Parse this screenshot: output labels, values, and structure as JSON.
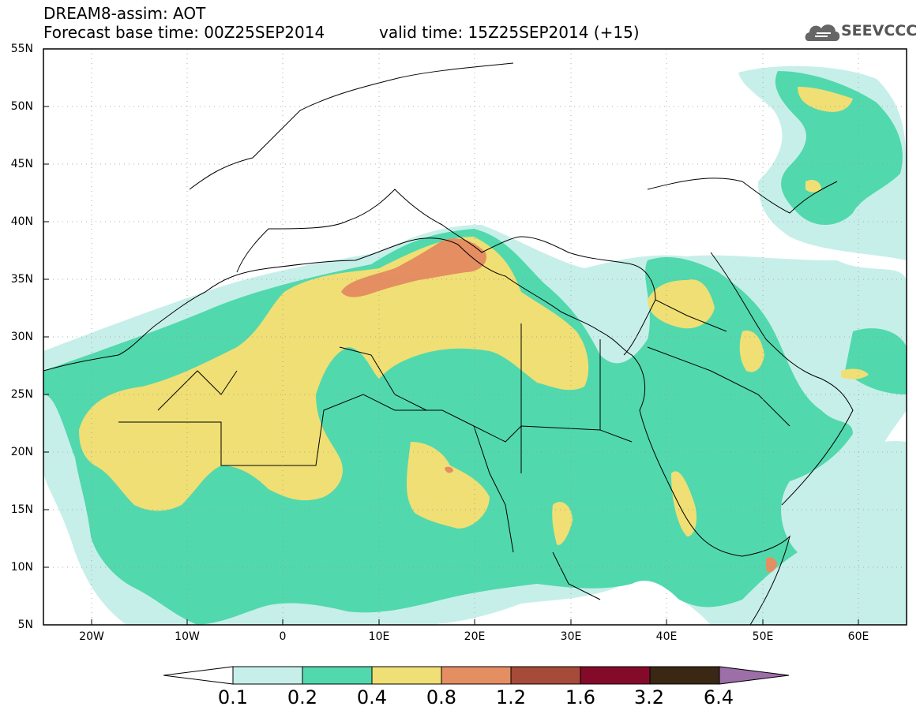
{
  "header": {
    "line1": "DREAM8-assim: AOT",
    "base_time": "Forecast base time: 00Z25SEP2014",
    "valid_time": "valid time: 15Z25SEP2014 (+15)",
    "logo_text": "SEEVCCC"
  },
  "map": {
    "lon_range": [
      -25,
      65
    ],
    "lat_range": [
      5,
      55
    ],
    "lat_ticks": [
      "55N",
      "50N",
      "45N",
      "40N",
      "35N",
      "30N",
      "25N",
      "20N",
      "15N",
      "10N",
      "5N"
    ],
    "lon_ticks": [
      "20W",
      "10W",
      "0",
      "10E",
      "20E",
      "30E",
      "40E",
      "50E",
      "60E"
    ]
  },
  "legend": {
    "levels": [
      "0.1",
      "0.2",
      "0.4",
      "0.8",
      "1.2",
      "1.6",
      "3.2",
      "6.4"
    ],
    "colors": [
      "#ffffff",
      "#c7efe9",
      "#52d8ad",
      "#f0df74",
      "#e48e62",
      "#a64a3a",
      "#840a2a",
      "#3a2714",
      "#9c6fa9"
    ]
  }
}
